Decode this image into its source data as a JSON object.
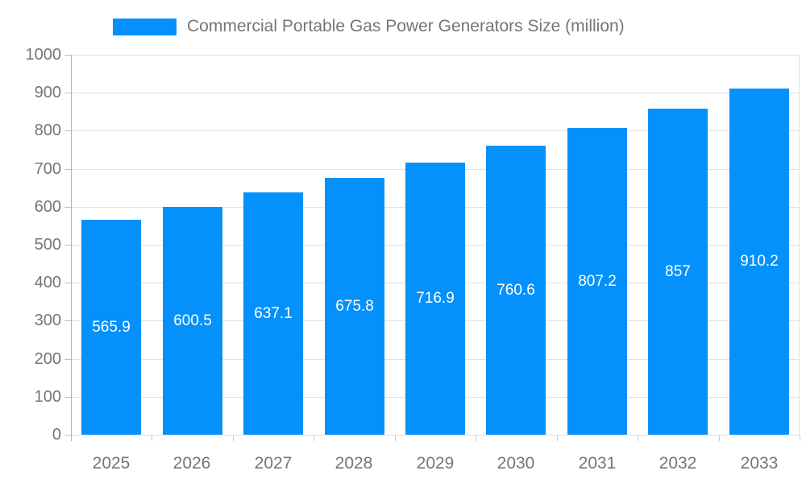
{
  "legend": {
    "series_label": "Commercial Portable Gas Power Generators Size (million)"
  },
  "chart_data": {
    "type": "bar",
    "title": "Commercial Portable Gas Power Generators Size (million)",
    "categories": [
      "2025",
      "2026",
      "2027",
      "2028",
      "2029",
      "2030",
      "2031",
      "2032",
      "2033"
    ],
    "values": [
      565.9,
      600.5,
      637.1,
      675.8,
      716.9,
      760.6,
      807.2,
      857,
      910.2
    ],
    "value_labels": [
      "565.9",
      "600.5",
      "637.1",
      "675.8",
      "716.9",
      "760.6",
      "807.2",
      "857",
      "910.2"
    ],
    "xlabel": "",
    "ylabel": "",
    "ylim": [
      0,
      1000
    ],
    "ytick_interval": 100,
    "ytick_labels": [
      "0",
      "100",
      "200",
      "300",
      "400",
      "500",
      "600",
      "700",
      "800",
      "900",
      "1000"
    ],
    "grid": true,
    "legend_position": "top",
    "colors": {
      "bar": "#0591FB",
      "axis_text": "#757575",
      "grid_line": "#E0E0E0",
      "axis_line": "#B0B0B0",
      "value_label": "#FFFFFF",
      "background": "#FFFFFF"
    }
  }
}
